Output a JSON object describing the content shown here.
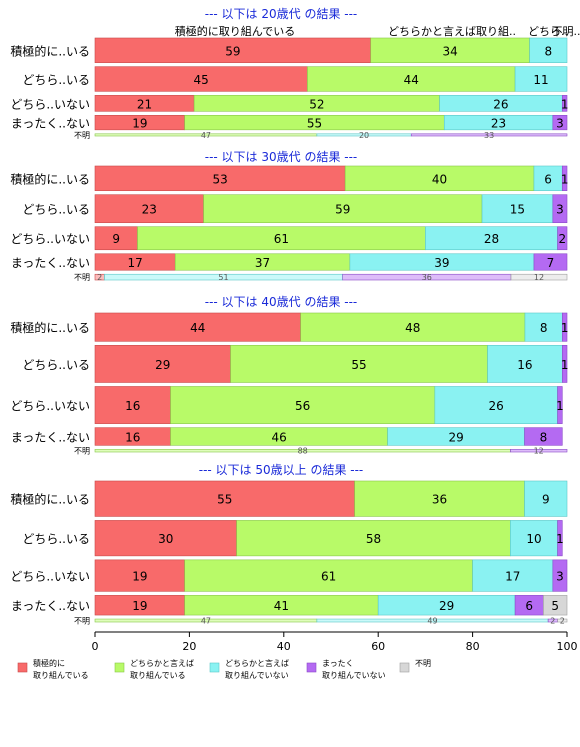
{
  "chart_data": {
    "type": "bar",
    "orientation": "horizontal",
    "stacked": true,
    "xlim": [
      0,
      100
    ],
    "xticks": [
      0,
      20,
      40,
      60,
      80,
      100
    ],
    "colors": [
      "#f86a6a",
      "#b8fa68",
      "#8af2f2",
      "#b46af2",
      "#d7d7d7"
    ],
    "legend": {
      "position": "bottom-left",
      "entries": [
        {
          "line1": "積極的に",
          "line2": "取り組んでいる"
        },
        {
          "line1": "どちらかと言えば",
          "line2": "取り組んでいる"
        },
        {
          "line1": "どちらかと言えば",
          "line2": "取り組んでいない"
        },
        {
          "line1": "まったく",
          "line2": "取り組んでいない"
        },
        {
          "line1": "不明",
          "line2": ""
        }
      ]
    },
    "column_headers": [
      "積極的に取り組んでいる",
      "どちらかと言えば取り組..",
      "どちら..",
      "不明.."
    ],
    "panels": [
      {
        "title": "--- 以下は 20歳代 の結果 ---",
        "rows": [
          {
            "label": "積極的に..いる",
            "values": [
              59,
              34,
              8,
              0,
              0
            ],
            "weight": 1.7
          },
          {
            "label": "どちら..いる",
            "values": [
              45,
              44,
              11,
              0,
              0
            ],
            "weight": 1.7
          },
          {
            "label": "どちら..いない",
            "values": [
              21,
              52,
              26,
              1,
              0
            ],
            "weight": 1.1
          },
          {
            "label": "まったく..ない",
            "values": [
              19,
              55,
              23,
              3,
              0
            ],
            "weight": 1.0
          },
          {
            "label": "不明",
            "values": [
              0,
              47,
              20,
              33,
              0
            ],
            "weight": 0.15
          }
        ]
      },
      {
        "title": "--- 以下は 30歳代 の結果 ---",
        "rows": [
          {
            "label": "積極的に..いる",
            "values": [
              53,
              40,
              6,
              1,
              0
            ],
            "weight": 1.5
          },
          {
            "label": "どちら..いる",
            "values": [
              23,
              59,
              15,
              3,
              0
            ],
            "weight": 1.7
          },
          {
            "label": "どちら..いない",
            "values": [
              9,
              61,
              28,
              2,
              0
            ],
            "weight": 1.4
          },
          {
            "label": "まったく..ない",
            "values": [
              17,
              37,
              39,
              7,
              0
            ],
            "weight": 1.0
          },
          {
            "label": "不明",
            "values": [
              2,
              0,
              51,
              36,
              12
            ],
            "weight": 0.35
          }
        ]
      },
      {
        "title": "--- 以下は 40歳代 の結果 ---",
        "rows": [
          {
            "label": "積極的に..いる",
            "values": [
              44,
              48,
              8,
              1,
              0
            ],
            "weight": 1.6
          },
          {
            "label": "どちら..いる",
            "values": [
              29,
              55,
              16,
              1,
              0
            ],
            "weight": 2.1
          },
          {
            "label": "どちら..いない",
            "values": [
              16,
              56,
              26,
              1,
              0
            ],
            "weight": 2.1
          },
          {
            "label": "まったく..ない",
            "values": [
              16,
              46,
              29,
              8,
              0
            ],
            "weight": 1.0
          },
          {
            "label": "不明",
            "values": [
              0,
              88,
              0,
              12,
              0
            ],
            "weight": 0.15
          }
        ]
      },
      {
        "title": "--- 以下は 50歳以上 の結果 ---",
        "rows": [
          {
            "label": "積極的に..いる",
            "values": [
              55,
              36,
              9,
              0,
              0
            ],
            "weight": 1.8
          },
          {
            "label": "どちら..いる",
            "values": [
              30,
              58,
              10,
              1,
              0
            ],
            "weight": 1.8
          },
          {
            "label": "どちら..いない",
            "values": [
              19,
              61,
              17,
              3,
              0
            ],
            "weight": 1.6
          },
          {
            "label": "まったく..ない",
            "values": [
              19,
              41,
              29,
              6,
              5
            ],
            "weight": 1.0
          },
          {
            "label": "不明",
            "values": [
              0,
              47,
              49,
              2,
              2
            ],
            "weight": 0.15
          }
        ]
      }
    ]
  }
}
